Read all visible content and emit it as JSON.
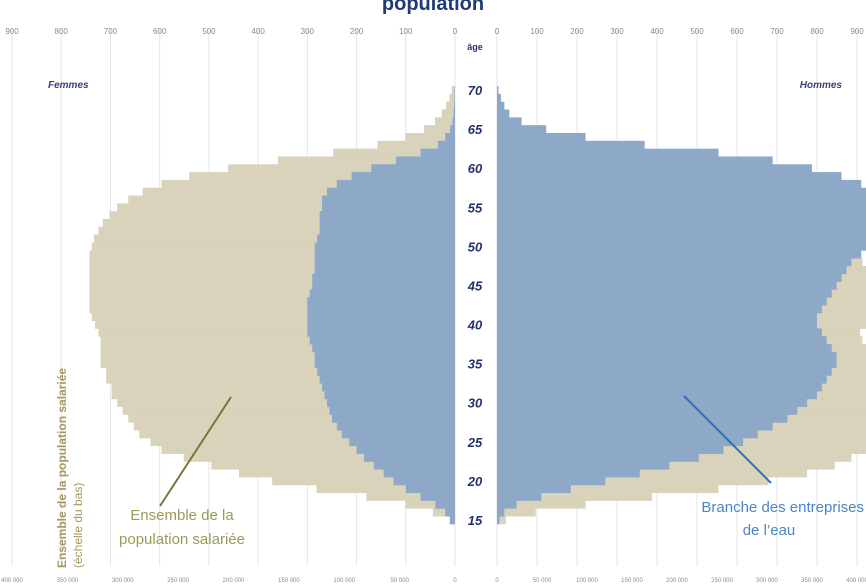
{
  "chart_data": {
    "type": "bar",
    "title": "population",
    "age_axis_label": "âge",
    "ages": [
      15,
      16,
      17,
      18,
      19,
      20,
      21,
      22,
      23,
      24,
      25,
      26,
      27,
      28,
      29,
      30,
      31,
      32,
      33,
      34,
      35,
      36,
      37,
      38,
      39,
      40,
      41,
      42,
      43,
      44,
      45,
      46,
      47,
      48,
      49,
      50,
      51,
      52,
      53,
      54,
      55,
      56,
      57,
      58,
      59,
      60,
      61,
      62,
      63,
      64,
      65,
      66,
      67,
      68,
      69,
      70
    ],
    "age_ticks": [
      15,
      20,
      25,
      30,
      35,
      40,
      45,
      50,
      55,
      60,
      65,
      70
    ],
    "top_axis_ticks_left": [
      "900",
      "800",
      "700",
      "600",
      "500",
      "400",
      "300",
      "200",
      "100",
      "0"
    ],
    "top_axis_ticks_right": [
      "0",
      "100",
      "200",
      "300",
      "400",
      "500",
      "600",
      "700",
      "800",
      "900"
    ],
    "bottom_axis_ticks_left": [
      "400 000",
      "350 000",
      "300 000",
      "250 000",
      "200 000",
      "150 000",
      "100 000",
      "50 000",
      "0"
    ],
    "bottom_axis_ticks_right": [
      "0",
      "50 000",
      "100 000",
      "150 000",
      "200 000",
      "250 000",
      "300 000",
      "350 000",
      "400 000"
    ],
    "top_axis_range": [
      0,
      900
    ],
    "bottom_axis_range": [
      0,
      400000
    ],
    "labels": {
      "women": "Femmes",
      "men": "Hommes",
      "annotation_left_1": "Ensemble de la",
      "annotation_left_2": "population salariée",
      "annotation_right_1": "Branche des entreprises",
      "annotation_right_2": "de l’eau",
      "side_label_1": "Ensemble de la population salariée",
      "side_label_2": "(échelle du bas)"
    },
    "series": [
      {
        "name": "Ensemble de la population salariée - Femmes",
        "scale": "bottom",
        "color": "#d9d3bb",
        "values": [
          5000,
          20000,
          45000,
          80000,
          125000,
          165000,
          195000,
          220000,
          245000,
          265000,
          275000,
          285000,
          290000,
          295000,
          300000,
          305000,
          310000,
          310000,
          315000,
          315000,
          320000,
          320000,
          320000,
          320000,
          322000,
          325000,
          328000,
          330000,
          330000,
          330000,
          330000,
          330000,
          330000,
          330000,
          330000,
          328000,
          326000,
          322000,
          318000,
          312000,
          305000,
          295000,
          282000,
          265000,
          240000,
          205000,
          160000,
          110000,
          70000,
          45000,
          28000,
          18000,
          12000,
          8000,
          5000,
          3000
        ]
      },
      {
        "name": "Branche des entreprises de l'eau - Femmes",
        "scale": "top",
        "color": "#8ea9c8",
        "values": [
          10,
          20,
          40,
          70,
          100,
          125,
          145,
          165,
          185,
          200,
          215,
          230,
          240,
          250,
          255,
          260,
          265,
          270,
          275,
          280,
          285,
          285,
          290,
          295,
          300,
          300,
          300,
          300,
          300,
          295,
          290,
          290,
          285,
          285,
          285,
          285,
          280,
          275,
          275,
          275,
          270,
          270,
          260,
          240,
          210,
          170,
          120,
          70,
          35,
          20,
          10,
          5,
          3,
          2,
          1,
          1
        ]
      },
      {
        "name": "Ensemble de la population salariée - Hommes",
        "scale": "bottom",
        "color": "#d9d3bb",
        "values": [
          8000,
          35000,
          80000,
          140000,
          200000,
          245000,
          280000,
          305000,
          320000,
          335000,
          343000,
          345000,
          348000,
          348000,
          348000,
          350000,
          350000,
          350000,
          350000,
          350000,
          345000,
          340000,
          335000,
          330000,
          328000,
          335000,
          340000,
          342000,
          345000,
          345000,
          342000,
          340000,
          335000,
          330000,
          328000,
          320000,
          315000,
          310000,
          305000,
          300000,
          290000,
          275000,
          255000,
          225000,
          185000,
          135000,
          90000,
          55000,
          35000,
          22000,
          14000,
          9000,
          6000,
          4000,
          2000,
          1000
        ]
      },
      {
        "name": "Branche des entreprises de l'eau - Hommes",
        "scale": "top",
        "color": "#8ea9c8",
        "values": [
          5,
          15,
          40,
          90,
          150,
          220,
          290,
          350,
          410,
          460,
          500,
          530,
          560,
          590,
          610,
          630,
          650,
          660,
          670,
          680,
          690,
          690,
          680,
          670,
          660,
          650,
          650,
          660,
          670,
          680,
          690,
          700,
          710,
          720,
          740,
          760,
          775,
          790,
          800,
          800,
          795,
          790,
          770,
          740,
          700,
          640,
          560,
          450,
          300,
          180,
          100,
          50,
          25,
          15,
          8,
          3
        ]
      }
    ]
  }
}
